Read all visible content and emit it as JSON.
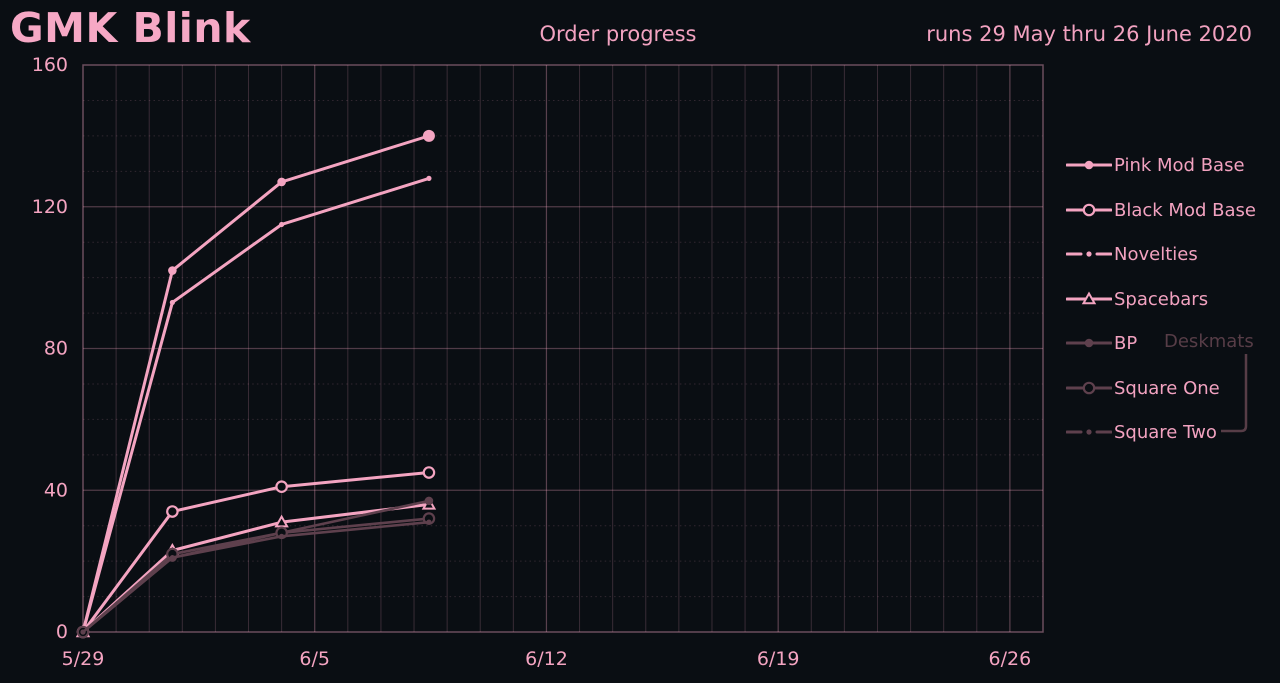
{
  "header": {
    "title": "GMK Blink",
    "center_title": "Order progress",
    "run_note": "runs 29 May thru 26 June 2020"
  },
  "colors": {
    "background": "#0a0e13",
    "accent_pink": "#f4a4c1",
    "muted_mauve": "#5e404d",
    "deskmats_label_color": "#573d47",
    "grid_base": "#f4a4c1"
  },
  "chart_data": {
    "type": "line",
    "title": "Order progress",
    "subtitle": "runs 29 May thru 26 June 2020",
    "x_axis": {
      "tick_labels": [
        "5/29",
        "6/5",
        "6/12",
        "6/19",
        "6/26"
      ],
      "tick_days": [
        0,
        7,
        14,
        21,
        28
      ],
      "domain_days": [
        0,
        29
      ],
      "minor_step_days": 1
    },
    "y_axis": {
      "ticks": [
        0,
        40,
        80,
        120,
        160
      ],
      "minor_step": 10,
      "range": [
        0,
        160
      ]
    },
    "grid": "on",
    "legend_position": "right",
    "x_days": [
      0,
      2.7,
      6.0,
      10.45
    ],
    "series": [
      {
        "name": "Pink Mod Base",
        "values": [
          0,
          102,
          127,
          140
        ],
        "tone": "bright",
        "line": "solid",
        "marker": "filled-circle"
      },
      {
        "name": "Black Mod Base",
        "values": [
          0,
          34,
          41,
          45
        ],
        "tone": "bright",
        "line": "solid",
        "marker": "open-circle"
      },
      {
        "name": "Novelties",
        "values": [
          0,
          93,
          115,
          128
        ],
        "tone": "bright",
        "line": "dashdot",
        "marker": "dot"
      },
      {
        "name": "Spacebars",
        "values": [
          0,
          23,
          31,
          36
        ],
        "tone": "bright",
        "line": "solid",
        "marker": "open-triangle"
      },
      {
        "name": "BP",
        "values": [
          0,
          21,
          28,
          37
        ],
        "tone": "muted",
        "line": "solid",
        "marker": "filled-circle"
      },
      {
        "name": "Square One",
        "values": [
          0,
          22,
          28,
          32
        ],
        "tone": "muted",
        "line": "solid",
        "marker": "open-circle"
      },
      {
        "name": "Square Two",
        "values": [
          0,
          21,
          27,
          31
        ],
        "tone": "muted",
        "line": "dashdot",
        "marker": "dot"
      }
    ],
    "annotation": {
      "label": "Deskmats",
      "groups": [
        "Square One",
        "Square Two"
      ]
    }
  }
}
